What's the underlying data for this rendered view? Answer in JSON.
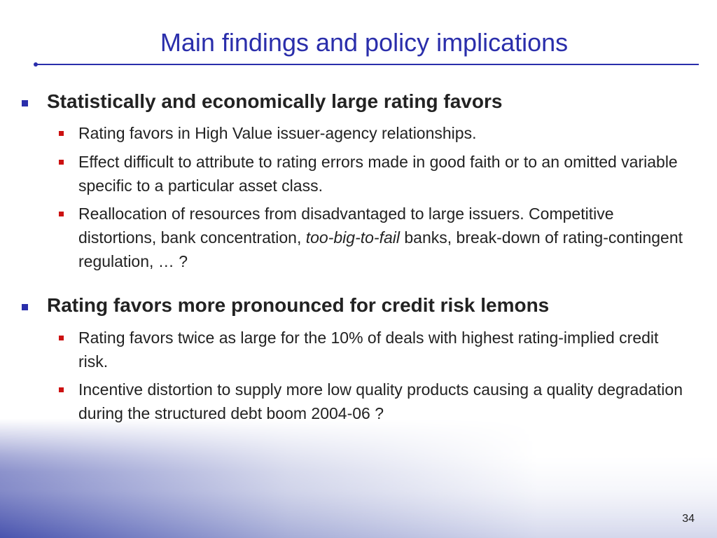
{
  "slide": {
    "title": "Main findings and policy implications",
    "page_number": "34"
  },
  "sections": [
    {
      "heading": "Statistically and economically large rating favors",
      "points": [
        {
          "text": "Rating favors in High Value issuer-agency relationships."
        },
        {
          "text": "Effect difficult to attribute to rating errors made in good faith or to an omitted variable specific to a particular asset class."
        },
        {
          "text_before": "Reallocation of resources from disadvantaged to large issuers. Competitive distortions, bank concentration, ",
          "emphasis": "too-big-to-fail",
          "text_after": " banks, break-down of rating-contingent regulation, … ?"
        }
      ]
    },
    {
      "heading": "Rating favors more pronounced for credit risk lemons",
      "points": [
        {
          "text": "Rating favors twice as large for the 10% of deals with highest rating-implied credit risk."
        },
        {
          "text": "Incentive distortion to supply more low quality products causing a quality degradation during the structured debt boom 2004-06 ?"
        }
      ]
    }
  ],
  "colors": {
    "title": "#2a2eab",
    "level1_bullet": "#2a2eab",
    "level2_bullet": "#cc1111",
    "gradient": "#2a35a0"
  }
}
